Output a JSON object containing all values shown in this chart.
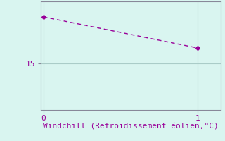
{
  "x": [
    0,
    1
  ],
  "y": [
    19.5,
    16.5
  ],
  "line_color": "#990099",
  "marker": "D",
  "marker_size": 3,
  "background_color": "#d9f5f0",
  "grid_color": "#aaccc8",
  "spine_color": "#888899",
  "xlabel": "Windchill (Refroidissement éolien,°C)",
  "xlabel_color": "#990099",
  "xlabel_fontsize": 8,
  "xlim": [
    -0.02,
    1.15
  ],
  "ylim": [
    10.5,
    21.0
  ],
  "yticks": [
    15
  ],
  "xticks": [
    0,
    1
  ],
  "ytick_labels": [
    "15"
  ],
  "xtick_labels": [
    "0",
    "1"
  ],
  "tick_fontsize": 8,
  "line_style": "--",
  "line_width": 1.0,
  "dashes": [
    4,
    3
  ]
}
